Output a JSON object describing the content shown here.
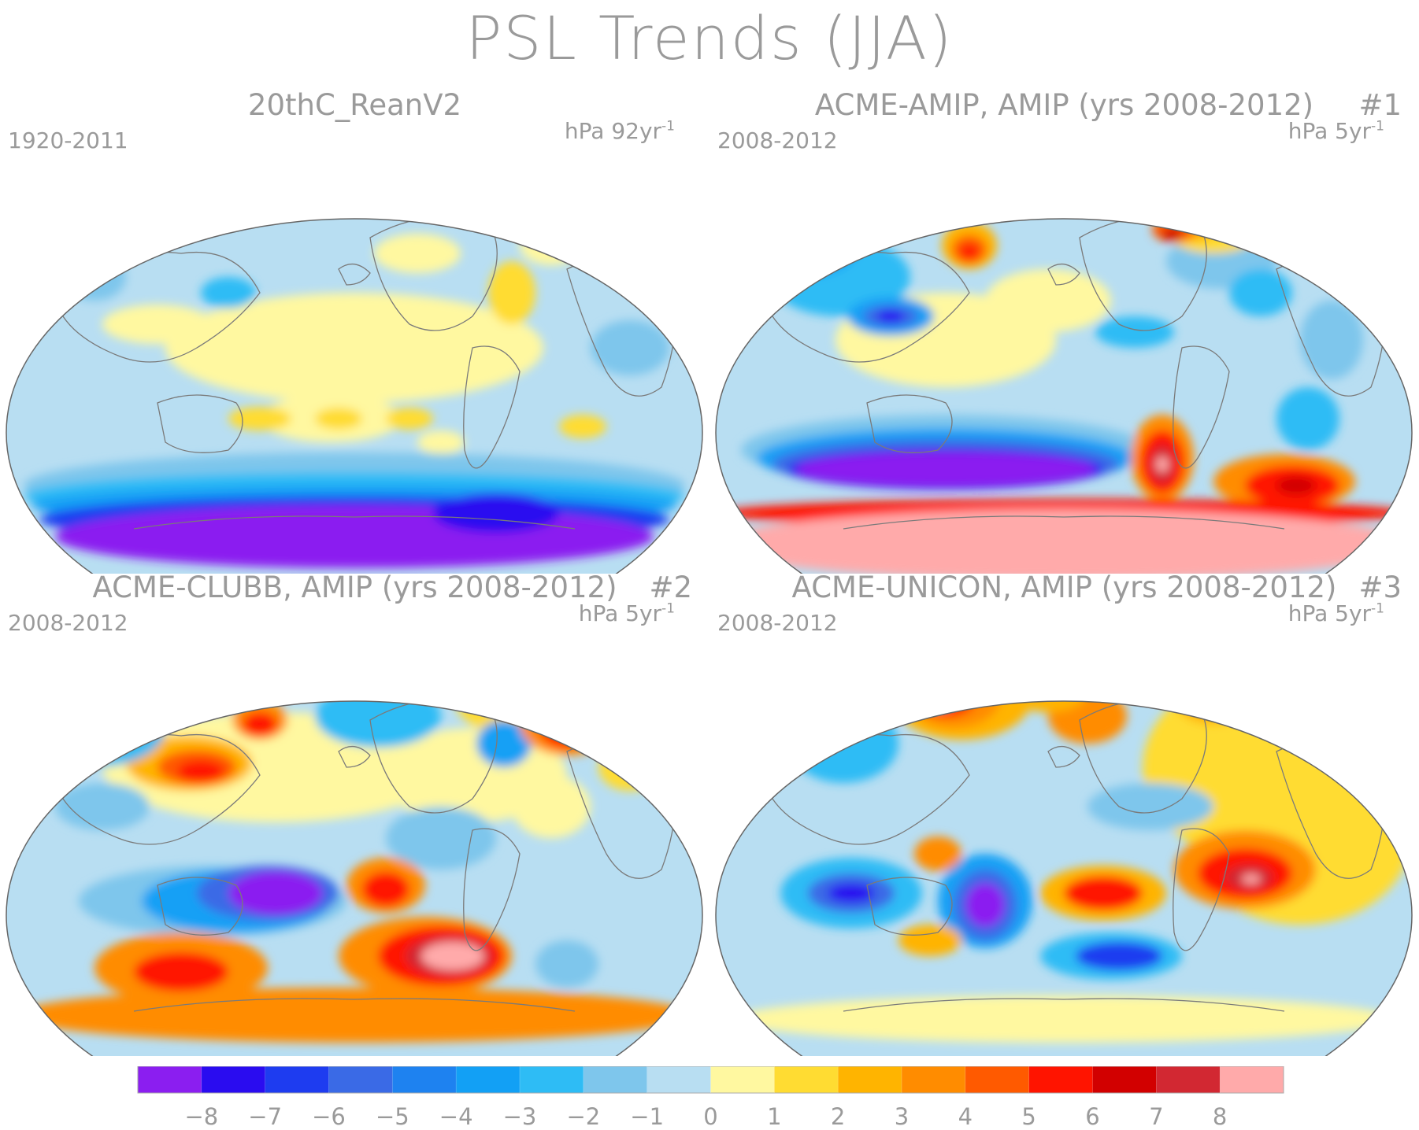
{
  "title": "PSL Trends (JJA)",
  "panels": [
    {
      "title": "20thC_ReanV2",
      "number": "",
      "period": "1920-2011",
      "units_prefix": "hPa 92yr",
      "units_exp": "-1"
    },
    {
      "title": "ACME-AMIP, AMIP (yrs 2008-2012)",
      "number": "#1",
      "period": "2008-2012",
      "units_prefix": "hPa 5yr",
      "units_exp": "-1"
    },
    {
      "title": "ACME-CLUBB, AMIP (yrs 2008-2012)",
      "number": "#2",
      "period": "2008-2012",
      "units_prefix": "hPa 5yr",
      "units_exp": "-1"
    },
    {
      "title": "ACME-UNICON, AMIP (yrs 2008-2012)",
      "number": "#3",
      "period": "2008-2012",
      "units_prefix": "hPa 5yr",
      "units_exp": "-1"
    }
  ],
  "colorbar": {
    "labels": [
      "-8",
      "-7",
      "-6",
      "-5",
      "-4",
      "-3",
      "-2",
      "-1",
      "0",
      "1",
      "2",
      "3",
      "4",
      "5",
      "6",
      "7",
      "8"
    ],
    "colors": [
      "#8b1ef0",
      "#2a0cf0",
      "#1e3cf0",
      "#3a6ae6",
      "#1e82f0",
      "#12a0f5",
      "#2ebcf5",
      "#7ec6ec",
      "#b8def2",
      "#fff8a0",
      "#ffdc32",
      "#ffb400",
      "#ff8c00",
      "#ff5a00",
      "#ff1400",
      "#d20000",
      "#d22832",
      "#ffaaaa"
    ]
  },
  "colors": {
    "land_outline": "#7a7a7a",
    "text": "#9a9a9a"
  }
}
